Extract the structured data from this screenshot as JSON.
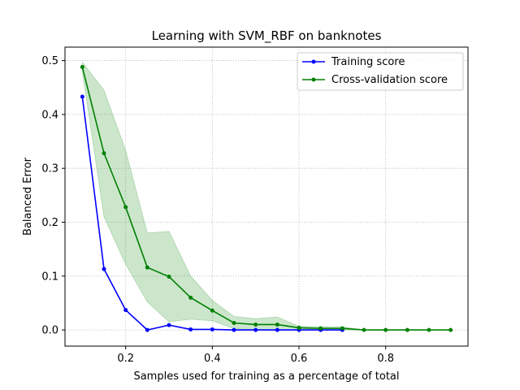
{
  "chart_data": {
    "type": "line",
    "title": "Learning with SVM_RBF on banknotes",
    "xlabel": "Samples used for training as a percentage of total",
    "ylabel": "Balanced Error",
    "xlim": [
      0.06,
      0.99
    ],
    "ylim": [
      -0.03,
      0.525
    ],
    "xticks": [
      0.2,
      0.4,
      0.6,
      0.8
    ],
    "yticks": [
      0.0,
      0.1,
      0.2,
      0.3,
      0.4,
      0.5
    ],
    "xtick_labels": [
      "0.2",
      "0.4",
      "0.6",
      "0.8"
    ],
    "ytick_labels": [
      "0.0",
      "0.1",
      "0.2",
      "0.3",
      "0.4",
      "0.5"
    ],
    "grid": true,
    "legend_position": "top-right",
    "series": [
      {
        "name": "Training score",
        "color": "#0000ff",
        "x": [
          0.1,
          0.15,
          0.2,
          0.25,
          0.3,
          0.35,
          0.4,
          0.45,
          0.5,
          0.55,
          0.6,
          0.65,
          0.7
        ],
        "y": [
          0.433,
          0.113,
          0.037,
          0.0,
          0.009,
          0.001,
          0.001,
          0.0,
          0.0,
          0.0,
          0.0,
          0.0,
          0.0
        ]
      },
      {
        "name": "Cross-validation score",
        "color": "#008000",
        "x": [
          0.1,
          0.15,
          0.2,
          0.25,
          0.3,
          0.35,
          0.4,
          0.45,
          0.5,
          0.55,
          0.6,
          0.65,
          0.7,
          0.75,
          0.8,
          0.85,
          0.9,
          0.95
        ],
        "y": [
          0.488,
          0.328,
          0.228,
          0.116,
          0.099,
          0.06,
          0.036,
          0.013,
          0.01,
          0.01,
          0.004,
          0.003,
          0.003,
          0.0,
          0.0,
          0.0,
          0.0,
          0.0
        ],
        "band_upper": [
          0.497,
          0.445,
          0.333,
          0.18,
          0.183,
          0.1,
          0.055,
          0.025,
          0.021,
          0.024,
          0.007,
          0.006,
          0.006,
          0.0,
          0.0,
          0.0,
          0.0,
          0.0
        ],
        "band_lower": [
          0.48,
          0.21,
          0.122,
          0.052,
          0.015,
          0.02,
          0.017,
          0.002,
          0.0,
          0.0,
          0.0,
          0.0,
          0.0,
          0.0,
          0.0,
          0.0,
          0.0,
          0.0
        ],
        "band_color": "#008000"
      }
    ]
  }
}
